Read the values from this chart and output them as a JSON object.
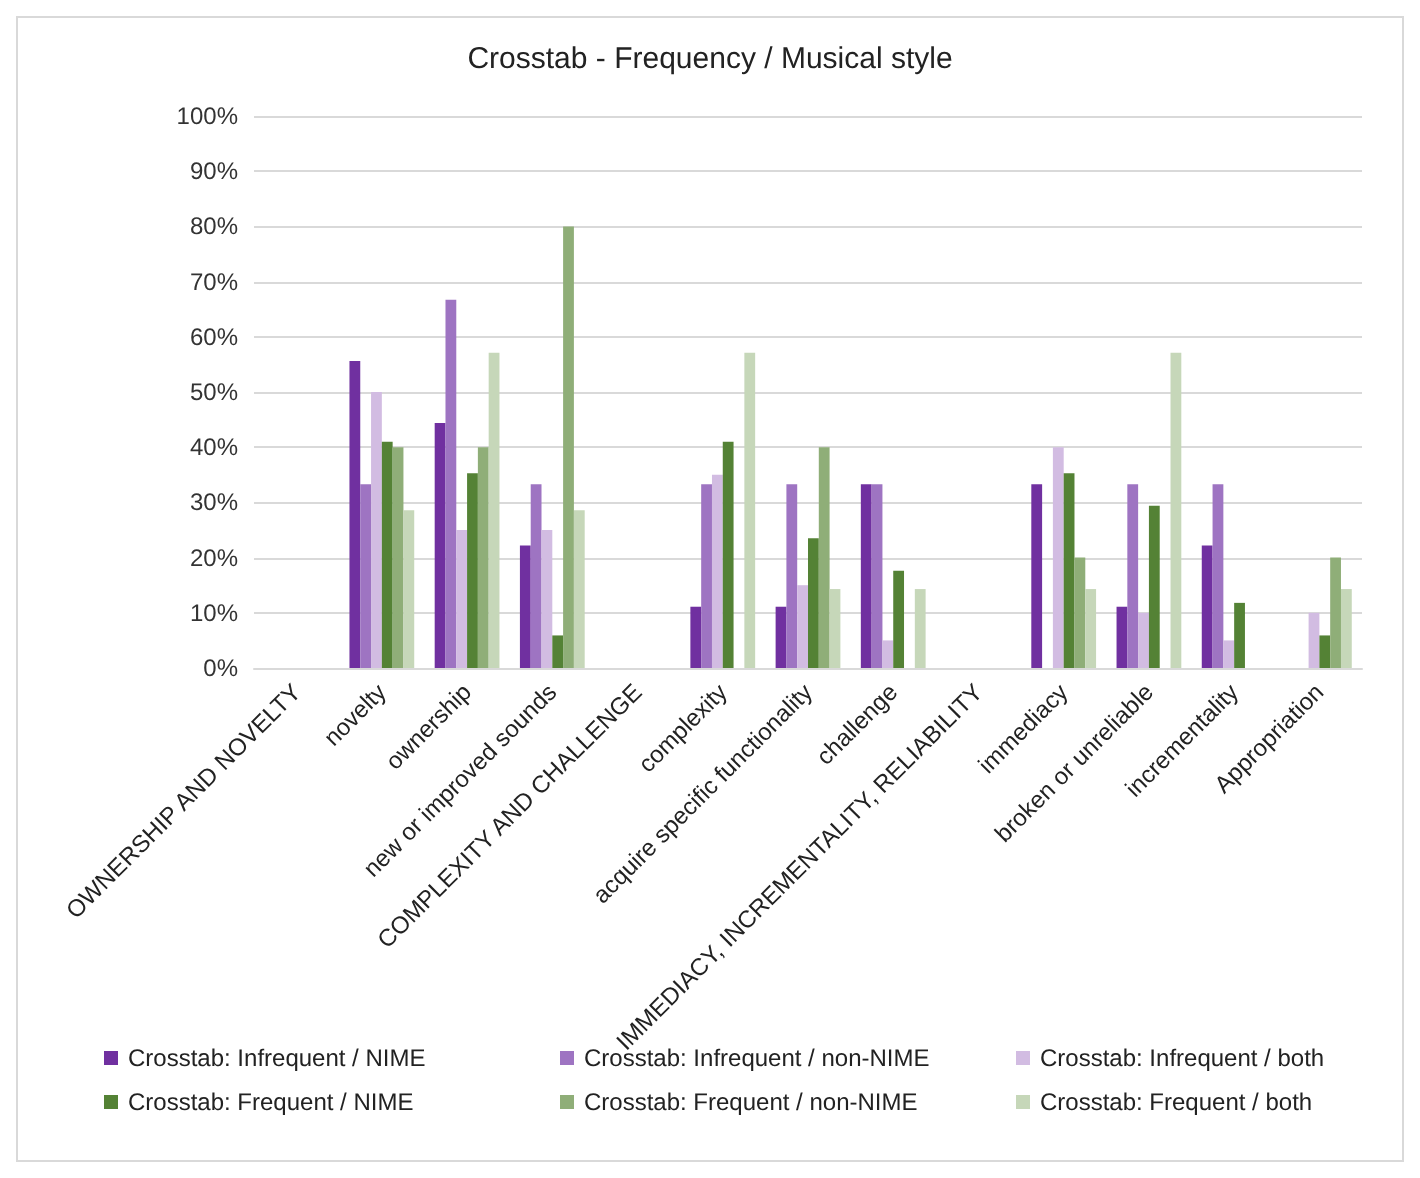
{
  "chart_data": {
    "type": "bar",
    "title": "Crosstab - Frequency / Musical style",
    "categories": [
      "OWNERSHIP AND NOVELTY",
      "novelty",
      "ownership",
      "new or improved sounds",
      "COMPLEXITY AND CHALLENGE",
      "complexity",
      "acquire specific functionality",
      "challenge",
      "IMMEDIACY, INCREMENTALITY, RELIABILITY",
      "immediacy",
      "broken or unreliable",
      "incrementality",
      "Appropriation"
    ],
    "series": [
      {
        "name": "Crosstab: Infrequent / NIME",
        "color": "#7030a0",
        "values": [
          null,
          55.6,
          44.4,
          22.2,
          null,
          11.1,
          11.1,
          33.3,
          null,
          33.3,
          11.1,
          22.2,
          0
        ]
      },
      {
        "name": "Crosstab: Infrequent / non-NIME",
        "color": "#9e74c2",
        "values": [
          null,
          33.3,
          66.7,
          33.3,
          null,
          33.3,
          33.3,
          33.3,
          null,
          0,
          33.3,
          33.3,
          0
        ]
      },
      {
        "name": "Crosstab: Infrequent / both",
        "color": "#d2bce2",
        "values": [
          null,
          50,
          25,
          25,
          null,
          35,
          15,
          5,
          null,
          40,
          10,
          5,
          10
        ]
      },
      {
        "name": "Crosstab: Frequent / NIME",
        "color": "#548235",
        "values": [
          null,
          41,
          35.3,
          5.9,
          null,
          41,
          23.5,
          17.6,
          null,
          35.3,
          29.4,
          11.8,
          5.9
        ]
      },
      {
        "name": "Crosstab: Frequent / non-NIME",
        "color": "#8fae78",
        "values": [
          null,
          40,
          40,
          80,
          null,
          0,
          40,
          0,
          null,
          20,
          0,
          0,
          20
        ]
      },
      {
        "name": "Crosstab: Frequent / both",
        "color": "#c6d7b9",
        "values": [
          null,
          28.6,
          57.1,
          28.6,
          null,
          57.1,
          14.3,
          14.3,
          null,
          14.3,
          57.1,
          0,
          14.3
        ]
      }
    ],
    "ylim": [
      0,
      100
    ],
    "yticks": [
      {
        "value": 0,
        "label": "0%"
      },
      {
        "value": 10,
        "label": "10%"
      },
      {
        "value": 20,
        "label": "20%"
      },
      {
        "value": 30,
        "label": "30%"
      },
      {
        "value": 40,
        "label": "40%"
      },
      {
        "value": 50,
        "label": "50%"
      },
      {
        "value": 60,
        "label": "60%"
      },
      {
        "value": 70,
        "label": "70%"
      },
      {
        "value": 80,
        "label": "80%"
      },
      {
        "value": 90,
        "label": "90%"
      },
      {
        "value": 100,
        "label": "100%"
      }
    ],
    "grid": "y",
    "legend": "bottom"
  }
}
